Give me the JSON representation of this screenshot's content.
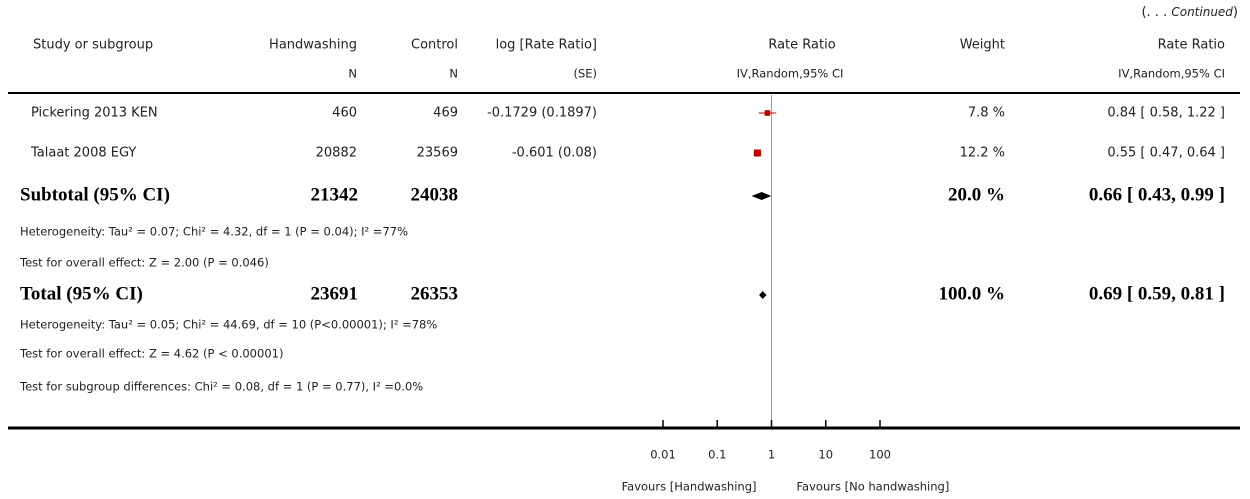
{
  "continued": {
    "open": "(. . . ",
    "text": "Continued",
    "close": ")"
  },
  "chart_data": {
    "type": "forest",
    "columns": {
      "study": "Study or subgroup",
      "treatment": "Handwashing",
      "control": "Control",
      "log_rr": "log [Rate Ratio]",
      "rr_plot": "Rate Ratio",
      "weight": "Weight",
      "rr": "Rate Ratio"
    },
    "subheaders": {
      "treatment": "N",
      "control": "N",
      "log_rr": "(SE)",
      "rr_plot": "IV,Random,95% CI",
      "rr": "IV,Random,95% CI"
    },
    "studies": [
      {
        "name": "Pickering 2013 KEN",
        "treatment_n": 460,
        "control_n": 469,
        "log_rr": -0.1729,
        "se": 0.1897,
        "log_rr_label": "-0.1729 (0.1897)",
        "weight": 7.8,
        "weight_label": "7.8 %",
        "rr": 0.84,
        "lower": 0.58,
        "upper": 1.22,
        "rr_label": "0.84 [ 0.58, 1.22 ]"
      },
      {
        "name": "Talaat 2008 EGY",
        "treatment_n": 20882,
        "control_n": 23569,
        "log_rr": -0.601,
        "se": 0.08,
        "log_rr_label": "-0.601 (0.08)",
        "weight": 12.2,
        "weight_label": "12.2 %",
        "rr": 0.55,
        "lower": 0.47,
        "upper": 0.64,
        "rr_label": "0.55 [ 0.47, 0.64 ]"
      }
    ],
    "subtotal": {
      "name": "Subtotal (95% CI)",
      "treatment_n": 21342,
      "control_n": 24038,
      "weight": 20.0,
      "weight_label": "20.0 %",
      "rr": 0.66,
      "lower": 0.43,
      "upper": 0.99,
      "rr_label": "0.66 [ 0.43, 0.99 ]",
      "heterogeneity": "Heterogeneity: Tau² = 0.07; Chi² = 4.32, df = 1 (P = 0.04); I² =77%",
      "overall_effect": "Test for overall effect: Z = 2.00 (P = 0.046)"
    },
    "total": {
      "name": "Total (95% CI)",
      "treatment_n": 23691,
      "control_n": 26353,
      "weight": 100.0,
      "weight_label": "100.0 %",
      "rr": 0.69,
      "lower": 0.59,
      "upper": 0.81,
      "rr_label": "0.69 [ 0.59, 0.81 ]",
      "heterogeneity": "Heterogeneity: Tau² = 0.05; Chi² = 44.69, df = 10 (P<0.00001); I² =78%",
      "overall_effect": "Test for overall effect: Z = 4.62 (P < 0.00001)"
    },
    "subgroup_differences": "Test for subgroup differences: Chi² = 0.08, df = 1 (P = 0.77), I² =0.0%",
    "log_scale": true,
    "null_value": 1,
    "xlim": [
      0.01,
      100
    ],
    "xticks": [
      0.01,
      0.1,
      1,
      10,
      100
    ],
    "xlabel_left": "Favours [Handwashing]",
    "xlabel_right": "Favours [No handwashing]",
    "color": "#c00000"
  }
}
